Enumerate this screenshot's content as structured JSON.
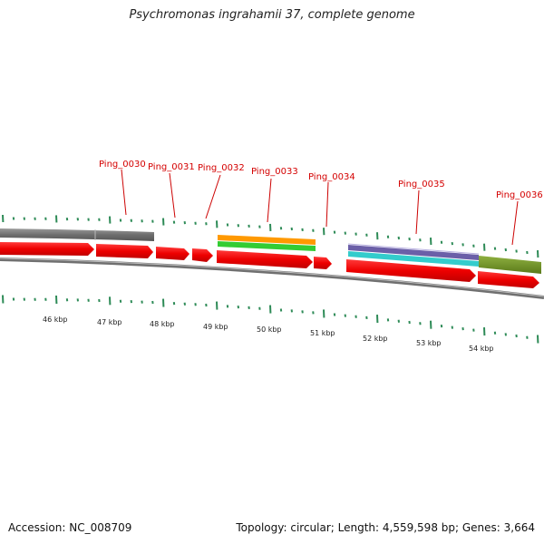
{
  "header": {
    "title": "Psychromonas ingrahamii 37, complete genome"
  },
  "footer": {
    "accession": "Accession: NC_008709",
    "summary": "Topology: circular; Length: 4,559,598 bp; Genes: 3,664"
  },
  "colors": {
    "gene": "#ee0000",
    "backbone": "#808080",
    "tick": "#2e8b57",
    "label": "#d40000",
    "feature_orange": "#ff9900",
    "feature_green": "#33cc33",
    "feature_purple": "#6b5fa8",
    "feature_cyan": "#33cccc",
    "feature_olive": "#6b8e23",
    "feature_gray": "#777777"
  },
  "scale_labels": [
    "46 kbp",
    "47 kbp",
    "48 kbp",
    "49 kbp",
    "50 kbp",
    "51 kbp",
    "52 kbp",
    "53 kbp",
    "54 kbp"
  ],
  "gene_labels": [
    "Ping_0030",
    "Ping_0031",
    "Ping_0032",
    "Ping_0033",
    "Ping_0034",
    "Ping_0035",
    "Ping_0036"
  ]
}
